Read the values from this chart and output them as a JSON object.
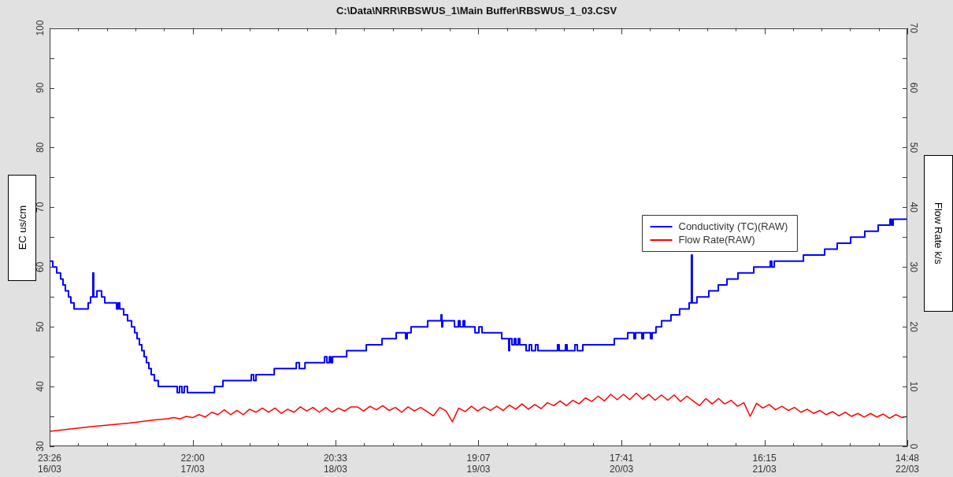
{
  "chart_data": {
    "type": "line",
    "title": "C:\\Data\\NRR\\RBSWUS_1\\Main Buffer\\RBSWUS_1_03.CSV",
    "ylabel": "EC us/cm",
    "y2label": "Flow Rate k/s",
    "xlim": [
      "--03-16T23:26",
      "--03-22T14:48"
    ],
    "xticks": [
      {
        "value": "--03-16T23:26",
        "label": "23:26\n16/03"
      },
      {
        "value": "--03-17T03:57",
        "label": null
      },
      {
        "value": "--03-17T08:27",
        "label": null
      },
      {
        "value": "--03-17T12:58",
        "label": null
      },
      {
        "value": "--03-17T17:29",
        "label": null
      },
      {
        "value": "--03-17T22:00",
        "label": "22:00\n17/03"
      },
      {
        "value": "--03-18T02:30",
        "label": null
      },
      {
        "value": "--03-18T07:01",
        "label": null
      },
      {
        "value": "--03-18T11:32",
        "label": null
      },
      {
        "value": "--03-18T16:03",
        "label": null
      },
      {
        "value": "--03-18T20:33",
        "label": "20:33\n18/03"
      },
      {
        "value": "--03-19T01:04",
        "label": null
      },
      {
        "value": "--03-19T05:35",
        "label": null
      },
      {
        "value": "--03-19T10:05",
        "label": null
      },
      {
        "value": "--03-19T14:36",
        "label": null
      },
      {
        "value": "--03-19T19:07",
        "label": "19:07\n19/03"
      },
      {
        "value": "--03-19T23:38",
        "label": null
      },
      {
        "value": "--03-20T04:08",
        "label": null
      },
      {
        "value": "--03-20T08:39",
        "label": null
      },
      {
        "value": "--03-20T13:10",
        "label": null
      },
      {
        "value": "--03-20T17:41",
        "label": "17:41\n20/03"
      },
      {
        "value": "--03-20T22:11",
        "label": null
      },
      {
        "value": "--03-21T02:42",
        "label": null
      },
      {
        "value": "--03-21T07:13",
        "label": null
      },
      {
        "value": "--03-21T11:44",
        "label": null
      },
      {
        "value": "--03-21T16:15",
        "label": "16:15\n21/03"
      },
      {
        "value": "--03-21T20:45",
        "label": null
      },
      {
        "value": "--03-22T01:16",
        "label": null
      },
      {
        "value": "--03-22T05:46",
        "label": null
      },
      {
        "value": "--03-22T10:17",
        "label": null
      },
      {
        "value": "--03-22T14:48",
        "label": "14:48\n22/03"
      }
    ],
    "ylim": [
      30,
      100
    ],
    "yticks": [
      30,
      {
        "value": 35,
        "label": null
      },
      40,
      {
        "value": 45,
        "label": null
      },
      50,
      {
        "value": 55,
        "label": null
      },
      60,
      {
        "value": 65,
        "label": null
      },
      70,
      {
        "value": 75,
        "label": null
      },
      80,
      {
        "value": 85,
        "label": null
      },
      90,
      {
        "value": 95,
        "label": null
      },
      100
    ],
    "y2lim": [
      0,
      70
    ],
    "y2ticks": [
      0,
      {
        "value": 5,
        "label": null
      },
      10,
      {
        "value": 15,
        "label": null
      },
      20,
      {
        "value": 25,
        "label": null
      },
      30,
      {
        "value": 35,
        "label": null
      },
      40,
      {
        "value": 45,
        "label": null
      },
      50,
      {
        "value": 55,
        "label": null
      },
      60,
      {
        "value": 65,
        "label": null
      },
      70
    ],
    "grid": false,
    "legend": "right",
    "marker": "none",
    "line_style": "solid",
    "series": [
      {
        "name": "Conductivity (TC)(RAW)",
        "type": "step",
        "color": "#0000ff",
        "x": [
          "--03-16T23:26",
          "--03-16T23:56",
          "--03-17T00:33",
          "--03-17T01:10",
          "--03-17T01:33",
          "--03-17T01:55",
          "--03-17T02:25",
          "--03-17T02:47",
          "--03-17T03:17",
          "--03-17T05:31",
          "--03-17T05:54",
          "--03-17T06:16",
          "--03-17T06:23",
          "--03-17T06:54",
          "--03-17T07:38",
          "--03-17T08:08",
          "--03-17T10:00",
          "--03-17T10:15",
          "--03-17T10:30",
          "--03-17T11:07",
          "--03-17T11:44",
          "--03-17T12:22",
          "--03-17T12:51",
          "--03-17T13:14",
          "--03-17T13:36",
          "--03-17T13:59",
          "--03-17T14:21",
          "--03-17T14:43",
          "--03-17T15:06",
          "--03-17T15:28",
          "--03-17T15:58",
          "--03-17T16:35",
          "--03-17T19:34",
          "--03-17T19:56",
          "--03-17T20:19",
          "--03-17T20:41",
          "--03-17T21:11",
          "--03-18T01:27",
          "--03-18T02:47",
          "--03-18T07:16",
          "--03-18T07:38",
          "--03-18T08:00",
          "--03-18T10:53",
          "--03-18T14:22",
          "--03-18T14:51",
          "--03-18T15:44",
          "--03-18T18:50",
          "--03-18T19:12",
          "--03-18T19:35",
          "--03-18T19:50",
          "--03-18T20:05",
          "--03-18T22:19",
          "--03-19T01:25",
          "--03-19T03:54",
          "--03-19T06:08",
          "--03-19T07:37",
          "--03-19T07:52",
          "--03-19T08:29",
          "--03-19T11:06",
          "--03-19T13:13",
          "--03-19T13:20",
          "--03-19T13:28",
          "--03-19T15:20",
          "--03-19T15:57",
          "--03-19T16:12",
          "--03-19T16:42",
          "--03-19T16:57",
          "--03-19T18:34",
          "--03-19T19:11",
          "--03-19T19:41",
          "--03-19T22:47",
          "--03-19T23:54",
          "--03-20T00:01",
          "--03-20T00:24",
          "--03-20T00:46",
          "--03-20T01:01",
          "--03-20T01:23",
          "--03-20T01:38",
          "--03-20T02:38",
          "--03-20T03:08",
          "--03-20T03:30",
          "--03-20T04:07",
          "--03-20T04:30",
          "--03-20T07:36",
          "--03-20T07:51",
          "--03-20T08:51",
          "--03-20T09:06",
          "--03-20T10:20",
          "--03-20T10:43",
          "--03-20T11:35",
          "--03-20T16:33",
          "--03-20T18:40",
          "--03-20T19:39",
          "--03-20T19:54",
          "--03-20T20:54",
          "--03-20T21:09",
          "--03-20T22:16",
          "--03-20T22:31",
          "--03-20T23:08",
          "--03-21T00:01",
          "--03-21T01:30",
          "--03-21T02:52",
          "--03-21T04:22",
          "--03-21T04:44",
          "--03-21T04:51",
          "--03-21T05:36",
          "--03-21T07:28",
          "--03-21T08:58",
          "--03-21T10:20",
          "--03-21T12:04",
          "--03-21T14:34",
          "--03-21T17:10",
          "--03-21T17:25",
          "--03-21T17:48",
          "--03-21T22:24",
          "--03-22T01:45",
          "--03-22T03:44",
          "--03-22T05:51",
          "--03-22T08:05",
          "--03-22T10:12",
          "--03-22T12:04",
          "--03-22T12:19",
          "--03-22T12:34",
          "--03-22T14:48"
        ],
        "values": [
          61,
          60,
          59,
          58,
          57,
          56,
          55,
          54,
          53,
          54,
          55,
          59,
          55,
          56,
          55,
          54,
          53,
          54,
          53,
          52,
          51,
          50,
          49,
          48,
          47,
          46,
          45,
          44,
          43,
          42,
          41,
          40,
          39,
          40,
          39,
          40,
          39,
          40,
          41,
          42,
          41,
          42,
          43,
          44,
          43,
          44,
          45,
          44,
          45,
          44,
          45,
          46,
          47,
          48,
          49,
          48,
          49,
          50,
          51,
          52,
          50,
          51,
          50,
          51,
          50,
          51,
          50,
          49,
          50,
          49,
          48,
          46,
          48,
          47,
          48,
          47,
          48,
          47,
          46,
          47,
          46,
          47,
          46,
          47,
          46,
          47,
          46,
          47,
          46,
          47,
          48,
          49,
          48,
          49,
          48,
          49,
          48,
          49,
          50,
          51,
          52,
          53,
          54,
          62,
          54,
          55,
          56,
          57,
          58,
          59,
          60,
          61,
          60,
          61,
          62,
          63,
          64,
          65,
          66,
          67,
          68,
          67,
          68,
          68
        ]
      },
      {
        "name": "Flow Rate(RAW)",
        "type": "line",
        "color": "#ff0000",
        "axis": "y2",
        "x": [
          "--03-16T23:26",
          "--03-17T06:00",
          "--03-17T12:00",
          "--03-17T16:00",
          "--03-17T18:00",
          "--03-17T19:00",
          "--03-17T20:00",
          "--03-17T21:00",
          "--03-17T22:00",
          "--03-17T23:00",
          "--03-18T00:00",
          "--03-18T01:00",
          "--03-18T02:00",
          "--03-18T03:00",
          "--03-18T04:00",
          "--03-18T05:00",
          "--03-18T06:00",
          "--03-18T07:00",
          "--03-18T08:00",
          "--03-18T09:00",
          "--03-18T10:00",
          "--03-18T11:00",
          "--03-18T12:00",
          "--03-18T13:00",
          "--03-18T14:00",
          "--03-18T15:00",
          "--03-18T16:00",
          "--03-18T17:00",
          "--03-18T18:00",
          "--03-18T19:00",
          "--03-18T20:00",
          "--03-18T21:00",
          "--03-18T22:00",
          "--03-18T23:00",
          "--03-19T00:00",
          "--03-19T01:00",
          "--03-19T02:00",
          "--03-19T03:00",
          "--03-19T04:00",
          "--03-19T05:00",
          "--03-19T06:00",
          "--03-19T07:00",
          "--03-19T08:00",
          "--03-19T09:00",
          "--03-19T10:00",
          "--03-19T11:00",
          "--03-19T12:00",
          "--03-19T13:00",
          "--03-19T14:00",
          "--03-19T15:00",
          "--03-19T16:00",
          "--03-19T17:00",
          "--03-19T18:00",
          "--03-19T19:00",
          "--03-19T20:00",
          "--03-19T21:00",
          "--03-19T22:00",
          "--03-19T23:00",
          "--03-20T00:00",
          "--03-20T01:00",
          "--03-20T02:00",
          "--03-20T03:00",
          "--03-20T04:00",
          "--03-20T05:00",
          "--03-20T06:00",
          "--03-20T07:00",
          "--03-20T08:00",
          "--03-20T09:00",
          "--03-20T10:00",
          "--03-20T11:00",
          "--03-20T12:00",
          "--03-20T13:00",
          "--03-20T14:00",
          "--03-20T15:00",
          "--03-20T16:00",
          "--03-20T17:00",
          "--03-20T18:00",
          "--03-20T19:00",
          "--03-20T20:00",
          "--03-20T21:00",
          "--03-20T22:00",
          "--03-20T23:00",
          "--03-21T00:00",
          "--03-21T01:00",
          "--03-21T02:00",
          "--03-21T03:00",
          "--03-21T04:00",
          "--03-21T05:00",
          "--03-21T06:00",
          "--03-21T07:00",
          "--03-21T08:00",
          "--03-21T09:00",
          "--03-21T10:00",
          "--03-21T11:00",
          "--03-21T12:00",
          "--03-21T13:00",
          "--03-21T14:00",
          "--03-21T15:00",
          "--03-21T16:00",
          "--03-21T17:00",
          "--03-21T18:00",
          "--03-21T19:00",
          "--03-21T20:00",
          "--03-21T21:00",
          "--03-21T22:00",
          "--03-21T23:00",
          "--03-22T00:00",
          "--03-22T01:00",
          "--03-22T02:00",
          "--03-22T03:00",
          "--03-22T04:00",
          "--03-22T05:00",
          "--03-22T06:00",
          "--03-22T07:00",
          "--03-22T08:00",
          "--03-22T09:00",
          "--03-22T10:00",
          "--03-22T11:00",
          "--03-22T12:00",
          "--03-22T13:00",
          "--03-22T14:00",
          "--03-22T14:48"
        ],
        "values": [
          2.5,
          3.3,
          3.9,
          4.4,
          4.6,
          4.8,
          4.6,
          5.0,
          4.8,
          5.3,
          4.9,
          5.7,
          5.3,
          6.1,
          5.3,
          6.0,
          5.3,
          6.2,
          5.7,
          6.4,
          5.7,
          6.4,
          5.5,
          6.2,
          5.7,
          6.6,
          5.9,
          6.5,
          5.7,
          6.5,
          5.7,
          6.4,
          5.9,
          6.6,
          6.6,
          5.9,
          6.7,
          6.1,
          6.8,
          6.0,
          6.5,
          5.7,
          6.6,
          5.9,
          6.5,
          5.8,
          5.1,
          6.5,
          5.9,
          4.1,
          6.4,
          5.8,
          6.7,
          5.9,
          6.6,
          6.0,
          6.7,
          6.0,
          6.9,
          6.2,
          7.1,
          6.2,
          7.0,
          6.3,
          7.3,
          6.8,
          7.6,
          6.8,
          7.7,
          7.1,
          8.1,
          7.5,
          8.4,
          7.6,
          8.7,
          7.8,
          8.7,
          7.8,
          8.9,
          7.9,
          8.7,
          7.7,
          8.6,
          7.7,
          8.6,
          7.5,
          8.4,
          7.6,
          6.8,
          8.0,
          7.1,
          8.0,
          7.1,
          7.7,
          6.7,
          7.3,
          5.0,
          7.2,
          6.4,
          7.0,
          6.1,
          6.7,
          6.0,
          6.5,
          5.7,
          6.2,
          5.5,
          6.0,
          5.3,
          5.8,
          5.1,
          5.7,
          5.0,
          5.5,
          4.9,
          5.5,
          4.9,
          5.4,
          4.7,
          5.3,
          4.8,
          5.0
        ]
      }
    ]
  }
}
